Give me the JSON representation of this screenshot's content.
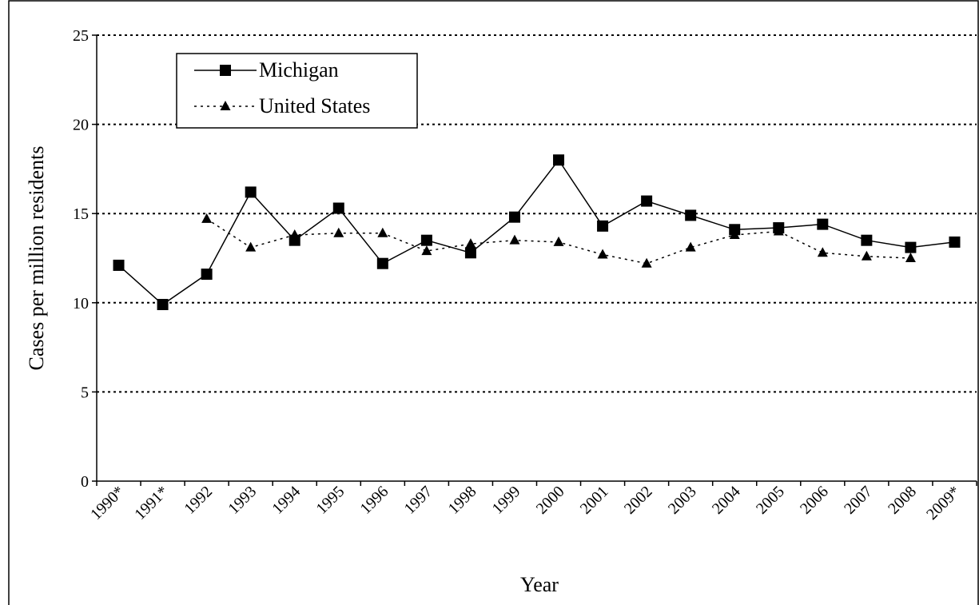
{
  "chart_data": {
    "type": "line",
    "x_label": "Year",
    "y_label": "Cases per million residents",
    "categories": [
      "1990*",
      "1991*",
      "1992",
      "1993",
      "1994",
      "1995",
      "1996",
      "1997",
      "1998",
      "1999",
      "2000",
      "2001",
      "2002",
      "2003",
      "2004",
      "2005",
      "2006",
      "2007",
      "2008",
      "2009*"
    ],
    "series": [
      {
        "name": "Michigan",
        "color": "#000000",
        "marker": "square",
        "dash": "solid",
        "values": [
          12.1,
          9.9,
          11.6,
          16.2,
          13.5,
          15.3,
          12.2,
          13.5,
          12.8,
          14.8,
          18.0,
          14.3,
          15.7,
          14.9,
          14.1,
          14.2,
          14.4,
          13.5,
          13.1,
          13.4
        ]
      },
      {
        "name": "United States",
        "color": "#000000",
        "marker": "triangle",
        "dash": "dotted",
        "values": [
          null,
          null,
          14.7,
          13.1,
          13.8,
          13.9,
          13.9,
          12.9,
          13.3,
          13.5,
          13.4,
          12.7,
          12.2,
          13.1,
          13.8,
          14.0,
          12.8,
          12.6,
          12.5,
          null
        ]
      }
    ],
    "ylim": [
      0,
      25
    ],
    "yticks": [
      0,
      5,
      10,
      15,
      20,
      25
    ],
    "grid": true,
    "legend": "upper left"
  }
}
